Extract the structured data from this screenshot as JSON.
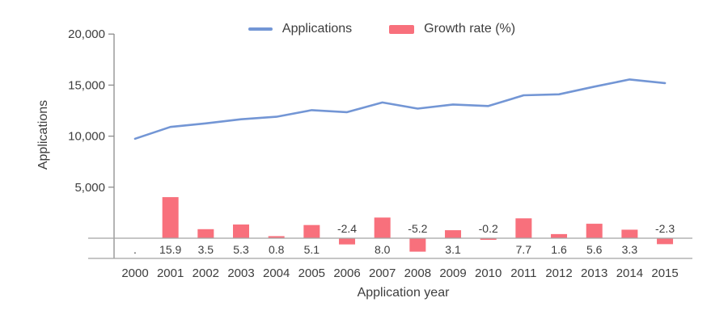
{
  "colors": {
    "line": "#7396d5",
    "bar": "#f8707c",
    "text": "#3d3d3d",
    "axis": "#8c8c8c",
    "band": "#a3a3a3",
    "background": "#ffffff"
  },
  "chart_data": {
    "type": "combo",
    "x": [
      "2000",
      "2001",
      "2002",
      "2003",
      "2004",
      "2005",
      "2006",
      "2007",
      "2008",
      "2009",
      "2010",
      "2011",
      "2012",
      "2013",
      "2014",
      "2015"
    ],
    "series": [
      {
        "name": "Applications",
        "type": "line",
        "color": "#7396d5",
        "values": [
          9750,
          10900,
          11250,
          11650,
          11900,
          12550,
          12350,
          13300,
          12700,
          13100,
          12950,
          14000,
          14100,
          14850,
          15550,
          15200
        ]
      },
      {
        "name": "Growth rate (%)",
        "type": "bar",
        "color": "#f8707c",
        "values": [
          null,
          15.9,
          3.5,
          5.3,
          0.8,
          5.1,
          -2.4,
          8.0,
          -5.2,
          3.1,
          -0.2,
          7.7,
          1.6,
          5.6,
          3.3,
          -2.3
        ],
        "labels": [
          ".",
          "15.9",
          "3.5",
          "5.3",
          "0.8",
          "5.1",
          "-2.4",
          "8.0",
          "-5.2",
          "3.1",
          "-0.2",
          "7.7",
          "1.6",
          "5.6",
          "3.3",
          "-2.3"
        ]
      }
    ],
    "title": "",
    "xlabel": "Application year",
    "ylabel": "Applications",
    "yticks": [
      "20,000",
      "15,000",
      "10,000",
      "5,000"
    ],
    "ytick_values": [
      20000,
      15000,
      10000,
      5000
    ],
    "ylim": [
      -1900,
      20000
    ],
    "grid": false,
    "legend_position": "top"
  }
}
